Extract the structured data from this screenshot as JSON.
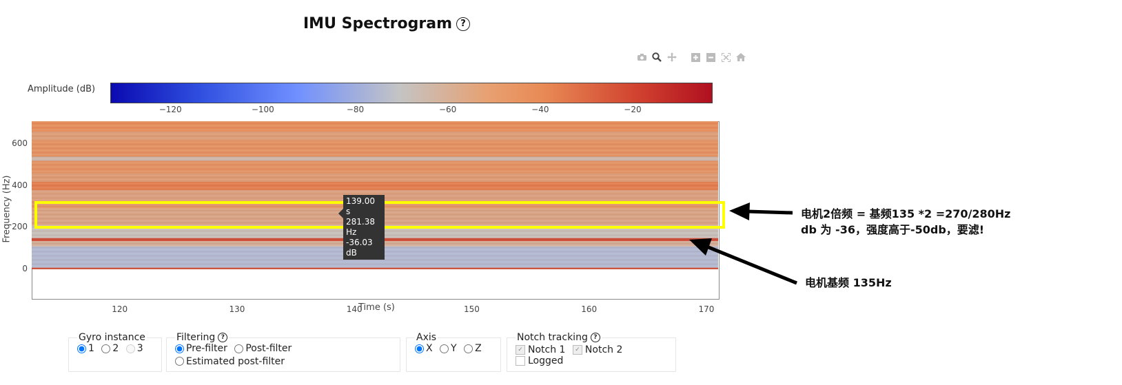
{
  "title": "IMU Spectrogram",
  "help_glyph": "?",
  "modebar": [
    "camera-icon",
    "zoom-icon",
    "pan-icon",
    "zoom-in-icon",
    "zoom-out-icon",
    "autoscale-icon",
    "reset-icon"
  ],
  "chart_data": {
    "type": "heatmap",
    "title": "IMU Spectrogram",
    "xlabel": "Time (s)",
    "ylabel": "Frequency (Hz)",
    "x_ticks": [
      120,
      130,
      140,
      150,
      160,
      170
    ],
    "y_ticks": [
      0,
      200,
      400,
      600
    ],
    "xlim": [
      112.5,
      171
    ],
    "ylim": [
      -140,
      710
    ],
    "heatmap_ylim": [
      0,
      710
    ],
    "colorbar": {
      "label": "Amplitude (dB)",
      "ticks": [
        "−120",
        "−100",
        "−80",
        "−60",
        "−40",
        "−20"
      ],
      "tick_values": [
        -120,
        -100,
        -80,
        -60,
        -40,
        -20
      ],
      "range": [
        -133,
        -3
      ],
      "colors": [
        "#0a0ab0",
        "#7090ff",
        "#c4c4c4",
        "#e88a55",
        "#b01020"
      ]
    },
    "bands": [
      {
        "freq_range": [
          0,
          8
        ],
        "amplitude_db": -22
      },
      {
        "freq_range": [
          8,
          110
        ],
        "amplitude_db": -75
      },
      {
        "freq_range": [
          110,
          135
        ],
        "amplitude_db": -55
      },
      {
        "freq_range": [
          135,
          150
        ],
        "amplitude_db": -20
      },
      {
        "freq_range": [
          150,
          210
        ],
        "amplitude_db": -65
      },
      {
        "freq_range": [
          210,
          290
        ],
        "amplitude_db": -50
      },
      {
        "freq_range": [
          290,
          330
        ],
        "amplitude_db": -42
      },
      {
        "freq_range": [
          330,
          380
        ],
        "amplitude_db": -48
      },
      {
        "freq_range": [
          380,
          420
        ],
        "amplitude_db": -32
      },
      {
        "freq_range": [
          420,
          460
        ],
        "amplitude_db": -45
      },
      {
        "freq_range": [
          460,
          520
        ],
        "amplitude_db": -40
      },
      {
        "freq_range": [
          520,
          540
        ],
        "amplitude_db": -60
      },
      {
        "freq_range": [
          540,
          620
        ],
        "amplitude_db": -40
      },
      {
        "freq_range": [
          620,
          660
        ],
        "amplitude_db": -46
      },
      {
        "freq_range": [
          660,
          710
        ],
        "amplitude_db": -38
      }
    ],
    "tooltip": {
      "lines": [
        "139.00 s",
        "281.38 Hz",
        "-36.03 dB"
      ]
    }
  },
  "annotations": {
    "harmonic_line1": "电机2倍频 = 基频135 *2 =270/280Hz",
    "harmonic_line2": "db 为 -36，强度高于-50db，要滤!",
    "fundamental": "电机基频 135Hz"
  },
  "controls": {
    "gyro": {
      "legend": "Gyro instance",
      "options": [
        "1",
        "2",
        "3"
      ],
      "selected": 0
    },
    "filtering": {
      "legend": "Filtering",
      "options": [
        "Pre-filter",
        "Post-filter",
        "Estimated post-filter"
      ],
      "selected": 0
    },
    "axis": {
      "legend": "Axis",
      "options": [
        "X",
        "Y",
        "Z"
      ],
      "selected": 0
    },
    "notch": {
      "legend": "Notch tracking",
      "options": [
        "Notch 1",
        "Notch 2",
        "Logged"
      ]
    }
  }
}
